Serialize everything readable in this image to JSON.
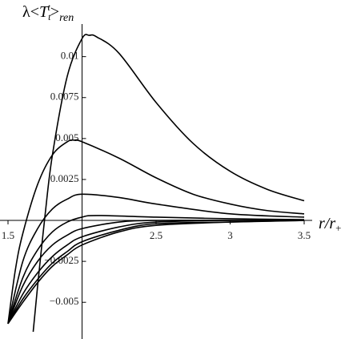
{
  "chart_data": {
    "type": "line",
    "ylabel": [
      "λ<",
      "T",
      "t",
      "t",
      ">",
      "ren"
    ],
    "xlabel": [
      "r/r",
      "+"
    ],
    "xlim": [
      1.5,
      3.5
    ],
    "xticks": [
      1.5,
      2.5,
      3,
      3.5
    ],
    "ylim": [
      -0.0068,
      0.0115
    ],
    "yticks": [
      0.01,
      0.0075,
      0.005,
      0.0025,
      {
        "value": -0.0025,
        "label": "−0.0025"
      },
      {
        "value": -0.005,
        "label": "−0.005"
      }
    ],
    "series": [
      {
        "color": "#000000",
        "x": [
          1.67,
          1.7,
          1.75,
          1.8,
          1.9,
          2.0,
          2.05,
          2.1,
          2.25,
          2.5,
          2.75,
          3.0,
          3.25,
          3.5
        ],
        "values": [
          -0.0068,
          -0.004,
          0.0003,
          0.004,
          0.0088,
          0.0111,
          0.0113,
          0.0112,
          0.0102,
          0.0072,
          0.0047,
          0.003,
          0.0019,
          0.0012
        ]
      },
      {
        "color": "#000000",
        "x": [
          1.5,
          1.55,
          1.6,
          1.7,
          1.8,
          1.9,
          1.95,
          2.0,
          2.25,
          2.5,
          2.75,
          3.0,
          3.25,
          3.5
        ],
        "values": [
          -0.0063,
          -0.003,
          -0.0008,
          0.0022,
          0.004,
          0.0048,
          0.0049,
          0.0048,
          0.0038,
          0.0026,
          0.0016,
          0.001,
          0.0006,
          0.0004
        ]
      },
      {
        "color": "#000000",
        "x": [
          1.5,
          1.6,
          1.7,
          1.8,
          1.9,
          2.0,
          2.25,
          2.5,
          3.0,
          3.5
        ],
        "values": [
          -0.0063,
          -0.0025,
          -0.0005,
          0.0007,
          0.0013,
          0.0016,
          0.0014,
          0.001,
          0.0004,
          0.0002
        ]
      },
      {
        "color": "#000000",
        "x": [
          1.5,
          1.6,
          1.7,
          1.8,
          1.9,
          2.0,
          2.1,
          2.5,
          3.0,
          3.5
        ],
        "values": [
          -0.0063,
          -0.0035,
          -0.0018,
          -0.0007,
          -0.0001,
          0.0002,
          0.0003,
          0.0002,
          0.0001,
          5e-05
        ]
      },
      {
        "color": "#000000",
        "x": [
          1.5,
          1.6,
          1.7,
          1.8,
          1.9,
          2.0,
          2.25,
          2.5,
          3.0,
          3.5
        ],
        "values": [
          -0.0063,
          -0.004,
          -0.0025,
          -0.0015,
          -0.0009,
          -0.0005,
          -0.0001,
          0,
          0,
          0
        ]
      },
      {
        "color": "#000000",
        "x": [
          1.5,
          1.6,
          1.7,
          1.8,
          1.9,
          2.0,
          2.25,
          2.5,
          3.0,
          3.5
        ],
        "values": [
          -0.0063,
          -0.0045,
          -0.0032,
          -0.0022,
          -0.0015,
          -0.001,
          -0.0004,
          -0.0001,
          0,
          0
        ]
      },
      {
        "color": "#000000",
        "x": [
          1.5,
          1.6,
          1.7,
          1.8,
          1.9,
          2.0,
          2.25,
          2.5,
          3.0,
          3.5
        ],
        "values": [
          -0.0063,
          -0.0048,
          -0.0036,
          -0.0026,
          -0.0019,
          -0.0013,
          -0.0006,
          -0.0002,
          -0.0001,
          0
        ]
      },
      {
        "color": "#000000",
        "x": [
          1.5,
          1.6,
          1.7,
          1.8,
          1.9,
          2.0,
          2.25,
          2.5,
          3.0,
          3.5
        ],
        "values": [
          -0.0063,
          -0.005,
          -0.0038,
          -0.0028,
          -0.0021,
          -0.0015,
          -0.0007,
          -0.0003,
          -0.0001,
          0
        ]
      }
    ]
  }
}
